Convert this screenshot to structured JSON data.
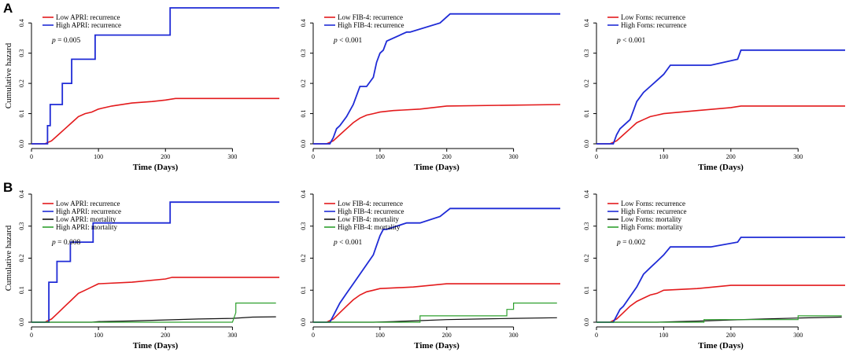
{
  "panels": [
    {
      "label": "A",
      "charts": [
        {
          "type": "line",
          "title": "",
          "xlabel": "Time (Days)",
          "ylabel": "Cumulative hazard",
          "xlim": [
            0,
            370
          ],
          "ylim": [
            0,
            0.45
          ],
          "xticks": [
            "0",
            "100",
            "200",
            "300"
          ],
          "xtick_values": [
            0,
            100,
            200,
            300
          ],
          "yticks": [
            "0.0",
            "0.1",
            "0.2",
            "0.3",
            "0.4"
          ],
          "ytick_values": [
            0,
            0.1,
            0.2,
            0.3,
            0.4
          ],
          "p_label": "p",
          "p_value": " = 0.005",
          "series": [
            {
              "name": "Low APRI: recurrence",
              "color": "#e31a1c",
              "width": 1.6,
              "x": [
                0,
                20,
                30,
                40,
                50,
                60,
                70,
                80,
                90,
                100,
                120,
                150,
                180,
                200,
                215,
                370
              ],
              "y": [
                0,
                0,
                0.01,
                0.03,
                0.05,
                0.07,
                0.09,
                0.1,
                0.105,
                0.115,
                0.125,
                0.135,
                0.14,
                0.145,
                0.15,
                0.15
              ]
            },
            {
              "name": "High APRI: recurrence",
              "color": "#1f2bd6",
              "width": 1.8,
              "x": [
                0,
                24,
                24,
                28,
                28,
                46,
                46,
                60,
                60,
                95,
                95,
                207,
                207,
                370
              ],
              "y": [
                0,
                0,
                0.06,
                0.06,
                0.13,
                0.13,
                0.2,
                0.2,
                0.28,
                0.28,
                0.36,
                0.36,
                0.45,
                0.45
              ]
            }
          ]
        },
        {
          "type": "line",
          "title": "",
          "xlabel": "Time (Days)",
          "ylabel": "",
          "xlim": [
            0,
            370
          ],
          "ylim": [
            0,
            0.45
          ],
          "xticks": [
            "0",
            "100",
            "200",
            "300"
          ],
          "xtick_values": [
            0,
            100,
            200,
            300
          ],
          "yticks": [
            "0.0",
            "0.1",
            "0.2",
            "0.3",
            "0.4"
          ],
          "ytick_values": [
            0,
            0.1,
            0.2,
            0.3,
            0.4
          ],
          "p_label": "p",
          "p_value": " < 0.001",
          "series": [
            {
              "name": "Low FIB-4: recurrence",
              "color": "#e31a1c",
              "width": 1.6,
              "x": [
                0,
                20,
                30,
                40,
                50,
                60,
                70,
                80,
                90,
                100,
                120,
                160,
                200,
                370
              ],
              "y": [
                0,
                0,
                0.01,
                0.03,
                0.05,
                0.07,
                0.085,
                0.095,
                0.1,
                0.105,
                0.11,
                0.115,
                0.125,
                0.13
              ]
            },
            {
              "name": "High FIB-4: recurrence",
              "color": "#1f2bd6",
              "width": 1.8,
              "x": [
                0,
                25,
                30,
                35,
                40,
                50,
                60,
                70,
                80,
                90,
                95,
                100,
                105,
                110,
                140,
                145,
                190,
                205,
                370
              ],
              "y": [
                0,
                0,
                0.02,
                0.05,
                0.06,
                0.09,
                0.13,
                0.19,
                0.19,
                0.22,
                0.27,
                0.3,
                0.31,
                0.34,
                0.37,
                0.37,
                0.4,
                0.43,
                0.43
              ]
            }
          ]
        },
        {
          "type": "line",
          "title": "",
          "xlabel": "Time (Days)",
          "ylabel": "",
          "xlim": [
            0,
            370
          ],
          "ylim": [
            0,
            0.45
          ],
          "xticks": [
            "0",
            "100",
            "200",
            "300"
          ],
          "xtick_values": [
            0,
            100,
            200,
            300
          ],
          "yticks": [
            "0.0",
            "0.1",
            "0.2",
            "0.3",
            "0.4"
          ],
          "ytick_values": [
            0,
            0.1,
            0.2,
            0.3,
            0.4
          ],
          "p_label": "p",
          "p_value": " < 0.001",
          "series": [
            {
              "name": "Low Forns: recurrence",
              "color": "#e31a1c",
              "width": 1.6,
              "x": [
                0,
                20,
                30,
                40,
                50,
                60,
                70,
                80,
                90,
                100,
                150,
                200,
                215,
                370
              ],
              "y": [
                0,
                0,
                0.01,
                0.03,
                0.05,
                0.07,
                0.08,
                0.09,
                0.095,
                0.1,
                0.11,
                0.12,
                0.125,
                0.125
              ]
            },
            {
              "name": "High Forns: recurrence",
              "color": "#1f2bd6",
              "width": 1.8,
              "x": [
                0,
                25,
                30,
                35,
                40,
                50,
                55,
                60,
                70,
                80,
                90,
                100,
                110,
                170,
                210,
                215,
                370
              ],
              "y": [
                0,
                0,
                0.03,
                0.05,
                0.06,
                0.08,
                0.11,
                0.14,
                0.17,
                0.19,
                0.21,
                0.23,
                0.26,
                0.26,
                0.28,
                0.31,
                0.31
              ]
            }
          ]
        }
      ]
    },
    {
      "label": "B",
      "charts": [
        {
          "type": "line",
          "title": "",
          "xlabel": "Time (Days)",
          "ylabel": "Cumulative hazard",
          "xlim": [
            0,
            370
          ],
          "ylim": [
            0,
            0.4
          ],
          "xticks": [
            "0",
            "100",
            "200",
            "300"
          ],
          "xtick_values": [
            0,
            100,
            200,
            300
          ],
          "yticks": [
            "0.0",
            "0.1",
            "0.2",
            "0.3",
            "0.4"
          ],
          "ytick_values": [
            0,
            0.1,
            0.2,
            0.3,
            0.4
          ],
          "p_label": "p",
          "p_value": " = 0.008",
          "series": [
            {
              "name": "Low APRI: recurrence",
              "color": "#e31a1c",
              "width": 1.6,
              "x": [
                0,
                20,
                30,
                40,
                50,
                60,
                70,
                80,
                90,
                100,
                150,
                200,
                210,
                370
              ],
              "y": [
                0,
                0,
                0.01,
                0.03,
                0.05,
                0.07,
                0.09,
                0.1,
                0.11,
                0.12,
                0.125,
                0.135,
                0.14,
                0.14
              ]
            },
            {
              "name": "High APRI: recurrence",
              "color": "#1f2bd6",
              "width": 1.8,
              "x": [
                0,
                26,
                26,
                38,
                38,
                58,
                58,
                92,
                92,
                207,
                207,
                370
              ],
              "y": [
                0,
                0,
                0.125,
                0.125,
                0.19,
                0.19,
                0.25,
                0.25,
                0.31,
                0.31,
                0.375,
                0.375
              ]
            },
            {
              "name": "Low APRI: mortality",
              "color": "#111111",
              "width": 1.2,
              "x": [
                0,
                90,
                100,
                150,
                200,
                250,
                300,
                330,
                365
              ],
              "y": [
                0,
                0,
                0.002,
                0.004,
                0.007,
                0.01,
                0.012,
                0.016,
                0.017
              ]
            },
            {
              "name": "High APRI: mortality",
              "color": "#2ea02e",
              "width": 1.2,
              "x": [
                0,
                230,
                300,
                305,
                305,
                365
              ],
              "y": [
                0,
                0,
                0,
                0.03,
                0.06,
                0.06
              ]
            }
          ]
        },
        {
          "type": "line",
          "title": "",
          "xlabel": "Time (Days)",
          "ylabel": "",
          "xlim": [
            0,
            370
          ],
          "ylim": [
            0,
            0.4
          ],
          "xticks": [
            "0",
            "100",
            "200",
            "300"
          ],
          "xtick_values": [
            0,
            100,
            200,
            300
          ],
          "yticks": [
            "0.0",
            "0.1",
            "0.2",
            "0.3",
            "0.4"
          ],
          "ytick_values": [
            0,
            0.1,
            0.2,
            0.3,
            0.4
          ],
          "p_label": "p",
          "p_value": " < 0.001",
          "series": [
            {
              "name": "Low FIB-4: recurrence",
              "color": "#e31a1c",
              "width": 1.6,
              "x": [
                0,
                20,
                30,
                40,
                50,
                60,
                70,
                80,
                90,
                100,
                150,
                200,
                370
              ],
              "y": [
                0,
                0,
                0.01,
                0.03,
                0.05,
                0.07,
                0.085,
                0.095,
                0.1,
                0.105,
                0.11,
                0.12,
                0.12
              ]
            },
            {
              "name": "High FIB-4: recurrence",
              "color": "#1f2bd6",
              "width": 1.8,
              "x": [
                0,
                25,
                30,
                35,
                40,
                50,
                60,
                70,
                80,
                90,
                95,
                100,
                105,
                110,
                140,
                160,
                190,
                205,
                370
              ],
              "y": [
                0,
                0,
                0.02,
                0.04,
                0.06,
                0.09,
                0.12,
                0.15,
                0.18,
                0.21,
                0.24,
                0.27,
                0.29,
                0.29,
                0.31,
                0.31,
                0.33,
                0.355,
                0.355
              ]
            },
            {
              "name": "Low FIB-4: mortality",
              "color": "#111111",
              "width": 1.2,
              "x": [
                0,
                90,
                120,
                160,
                200,
                250,
                300,
                365
              ],
              "y": [
                0,
                0,
                0.002,
                0.005,
                0.008,
                0.01,
                0.012,
                0.014
              ]
            },
            {
              "name": "High FIB-4: mortality",
              "color": "#2ea02e",
              "width": 1.2,
              "x": [
                0,
                150,
                160,
                160,
                290,
                290,
                300,
                300,
                365
              ],
              "y": [
                0,
                0,
                0,
                0.02,
                0.02,
                0.04,
                0.04,
                0.06,
                0.06
              ]
            }
          ]
        },
        {
          "type": "line",
          "title": "",
          "xlabel": "Time (Days)",
          "ylabel": "",
          "xlim": [
            0,
            370
          ],
          "ylim": [
            0,
            0.4
          ],
          "xticks": [
            "0",
            "100",
            "200",
            "300"
          ],
          "xtick_values": [
            0,
            100,
            200,
            300
          ],
          "yticks": [
            "0.0",
            "0.1",
            "0.2",
            "0.3",
            "0.4"
          ],
          "ytick_values": [
            0,
            0.1,
            0.2,
            0.3,
            0.4
          ],
          "p_label": "p",
          "p_value": " = 0.002",
          "series": [
            {
              "name": "Low Forns: recurrence",
              "color": "#e31a1c",
              "width": 1.6,
              "x": [
                0,
                20,
                30,
                40,
                50,
                60,
                70,
                80,
                90,
                100,
                150,
                200,
                370
              ],
              "y": [
                0,
                0,
                0.01,
                0.03,
                0.05,
                0.065,
                0.075,
                0.085,
                0.09,
                0.1,
                0.105,
                0.115,
                0.115
              ]
            },
            {
              "name": "High Forns: recurrence",
              "color": "#1f2bd6",
              "width": 1.8,
              "x": [
                0,
                25,
                30,
                35,
                40,
                50,
                60,
                70,
                80,
                90,
                100,
                110,
                170,
                210,
                215,
                370
              ],
              "y": [
                0,
                0,
                0.02,
                0.04,
                0.05,
                0.08,
                0.11,
                0.15,
                0.17,
                0.19,
                0.21,
                0.235,
                0.235,
                0.25,
                0.265,
                0.265
              ]
            },
            {
              "name": "Low Forns: mortality",
              "color": "#111111",
              "width": 1.2,
              "x": [
                0,
                90,
                120,
                160,
                200,
                250,
                300,
                365
              ],
              "y": [
                0,
                0,
                0.002,
                0.004,
                0.007,
                0.01,
                0.013,
                0.016
              ]
            },
            {
              "name": "High Forns: mortality",
              "color": "#2ea02e",
              "width": 1.2,
              "x": [
                0,
                160,
                160,
                300,
                300,
                365
              ],
              "y": [
                0,
                0,
                0.008,
                0.008,
                0.02,
                0.02
              ]
            }
          ]
        }
      ]
    }
  ]
}
